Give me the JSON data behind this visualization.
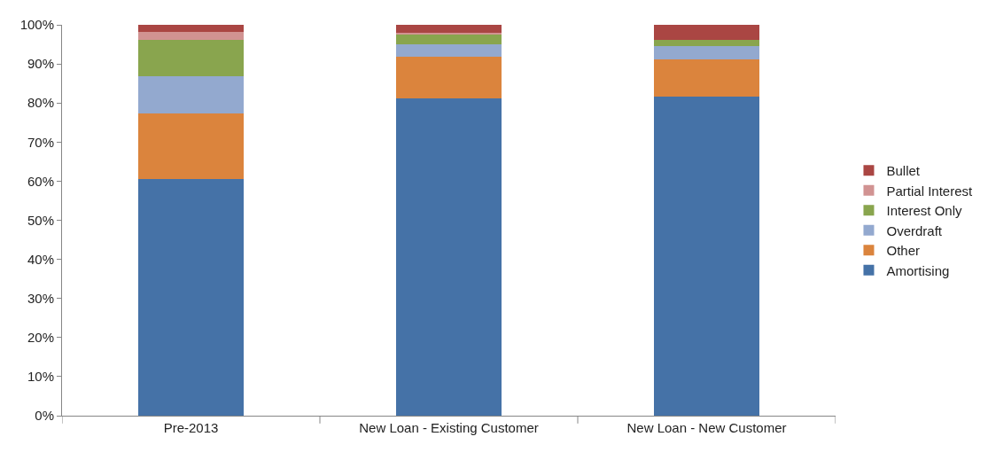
{
  "chart_data": {
    "type": "bar",
    "stacked": true,
    "categories": [
      "Pre-2013",
      "New Loan - Existing Customer",
      "New Loan - New Customer"
    ],
    "series": [
      {
        "name": "Amortising",
        "color": "#4572a7",
        "values": [
          60.6,
          81.2,
          81.7
        ]
      },
      {
        "name": "Other",
        "color": "#db843d",
        "values": [
          16.8,
          10.7,
          9.4
        ]
      },
      {
        "name": "Overdraft",
        "color": "#93a9cf",
        "values": [
          9.4,
          3.2,
          3.5
        ]
      },
      {
        "name": "Interest Only",
        "color": "#89a54e",
        "values": [
          9.3,
          2.5,
          1.6
        ]
      },
      {
        "name": "Partial Interest",
        "color": "#d19392",
        "values": [
          2.0,
          0.3,
          0
        ]
      },
      {
        "name": "Bullet",
        "color": "#aa4643",
        "values": [
          1.9,
          2.1,
          3.8
        ]
      }
    ],
    "ylim": [
      0,
      100
    ],
    "yticks": [
      {
        "value": 0,
        "label": "0%"
      },
      {
        "value": 10,
        "label": "10%"
      },
      {
        "value": 20,
        "label": "20%"
      },
      {
        "value": 30,
        "label": "30%"
      },
      {
        "value": 40,
        "label": "40%"
      },
      {
        "value": 50,
        "label": "50%"
      },
      {
        "value": 60,
        "label": "60%"
      },
      {
        "value": 70,
        "label": "70%"
      },
      {
        "value": 80,
        "label": "80%"
      },
      {
        "value": 90,
        "label": "90%"
      },
      {
        "value": 100,
        "label": "100%"
      }
    ],
    "grid": false,
    "legend": "right"
  }
}
